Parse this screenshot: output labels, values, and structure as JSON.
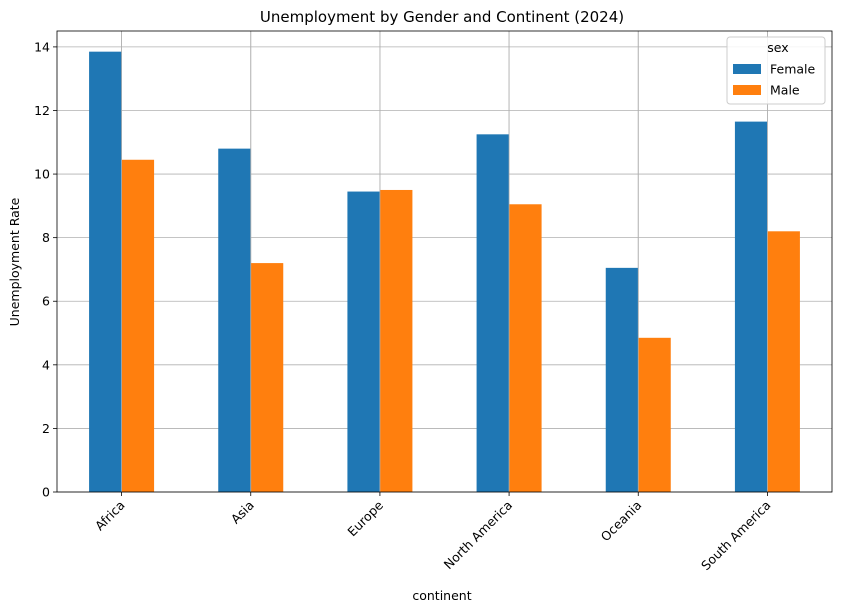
{
  "chart_data": {
    "type": "bar",
    "title": "Unemployment by Gender and Continent (2024)",
    "xlabel": "continent",
    "ylabel": "Unemployment Rate",
    "categories": [
      "Africa",
      "Asia",
      "Europe",
      "North America",
      "Oceania",
      "South America"
    ],
    "series": [
      {
        "name": "Female",
        "color": "#1f77b4",
        "values": [
          13.85,
          10.8,
          9.45,
          11.25,
          7.05,
          11.65
        ]
      },
      {
        "name": "Male",
        "color": "#ff7f0e",
        "values": [
          10.45,
          7.2,
          9.5,
          9.05,
          4.85,
          8.2
        ]
      }
    ],
    "ylim": [
      0,
      14.5
    ],
    "yticks": [
      "0",
      "2",
      "4",
      "6",
      "8",
      "10",
      "12",
      "14"
    ],
    "grid": true,
    "legend": {
      "title": "sex",
      "placement": "top-right"
    }
  }
}
